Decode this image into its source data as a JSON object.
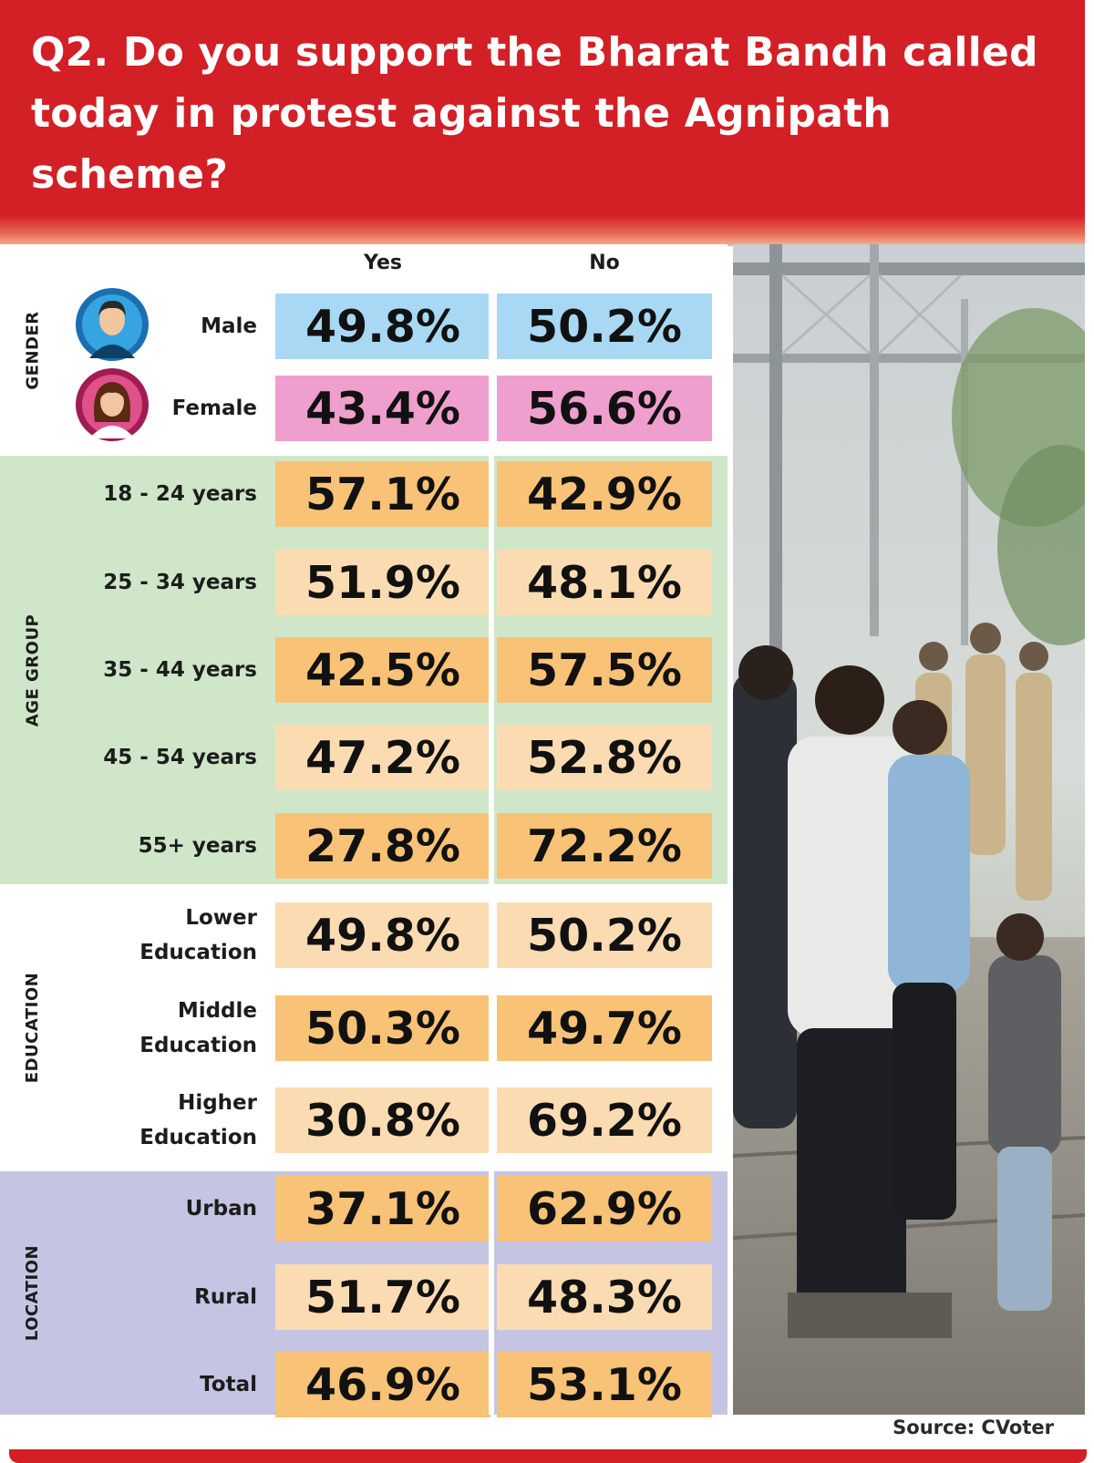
{
  "title": "Q2. Do you support the Bharat Bandh called today in protest against the Agnipath scheme?",
  "source": "Source: CVoter",
  "columns": [
    "Yes",
    "No"
  ],
  "groups": [
    {
      "label": "GENDER",
      "color": "#ffffff"
    },
    {
      "label": "AGE GROUP",
      "color": "#cfe6c9"
    },
    {
      "label": "EDUCATION",
      "color": "#ffffff"
    },
    {
      "label": "LOCATION",
      "color": "#c5c5e3"
    }
  ],
  "rows": [
    {
      "group": 0,
      "label": [
        "Male"
      ],
      "yes": "49.8%",
      "no": "50.2%",
      "color": "#a8d8f4"
    },
    {
      "group": 0,
      "label": [
        "Female"
      ],
      "yes": "43.4%",
      "no": "56.6%",
      "color": "#ef9fcd"
    },
    {
      "group": 1,
      "label": [
        "18 - 24 years"
      ],
      "yes": "57.1%",
      "no": "42.9%",
      "color": "#f8c277"
    },
    {
      "group": 1,
      "label": [
        "25 - 34 years"
      ],
      "yes": "51.9%",
      "no": "48.1%",
      "color": "#fbdcb2"
    },
    {
      "group": 1,
      "label": [
        "35 - 44 years"
      ],
      "yes": "42.5%",
      "no": "57.5%",
      "color": "#f8c277"
    },
    {
      "group": 1,
      "label": [
        "45 - 54 years"
      ],
      "yes": "47.2%",
      "no": "52.8%",
      "color": "#fbdcb2"
    },
    {
      "group": 1,
      "label": [
        "55+ years"
      ],
      "yes": "27.8%",
      "no": "72.2%",
      "color": "#f8c277"
    },
    {
      "group": 2,
      "label": [
        "Lower",
        "Education"
      ],
      "yes": "49.8%",
      "no": "50.2%",
      "color": "#fbdcb2"
    },
    {
      "group": 2,
      "label": [
        "Middle",
        "Education"
      ],
      "yes": "50.3%",
      "no": "49.7%",
      "color": "#f8c277"
    },
    {
      "group": 2,
      "label": [
        "Higher",
        "Education"
      ],
      "yes": "30.8%",
      "no": "69.2%",
      "color": "#fbdcb2"
    },
    {
      "group": 3,
      "label": [
        "Urban"
      ],
      "yes": "37.1%",
      "no": "62.9%",
      "color": "#f8c277"
    },
    {
      "group": 3,
      "label": [
        "Rural"
      ],
      "yes": "51.7%",
      "no": "48.3%",
      "color": "#fbdcb2"
    },
    {
      "group": 3,
      "label": [
        "Total"
      ],
      "yes": "46.9%",
      "no": "53.1%",
      "color": "#f8c277"
    }
  ],
  "chart_data": {
    "type": "table",
    "title": "Q2. Do you support the Bharat Bandh called today in protest against the Agnipath scheme?",
    "columns": [
      "Yes",
      "No"
    ],
    "categories": [
      "Male",
      "Female",
      "18 - 24 years",
      "25 - 34 years",
      "35 - 44 years",
      "45 - 54 years",
      "55+ years",
      "Lower Education",
      "Middle Education",
      "Higher Education",
      "Urban",
      "Rural",
      "Total"
    ],
    "series": [
      {
        "name": "Yes",
        "values": [
          49.8,
          43.4,
          57.1,
          51.9,
          42.5,
          47.2,
          27.8,
          49.8,
          50.3,
          30.8,
          37.1,
          51.7,
          46.9
        ]
      },
      {
        "name": "No",
        "values": [
          50.2,
          56.6,
          42.9,
          48.1,
          57.5,
          52.8,
          72.2,
          50.2,
          49.7,
          69.2,
          62.9,
          48.3,
          53.1
        ]
      }
    ]
  }
}
